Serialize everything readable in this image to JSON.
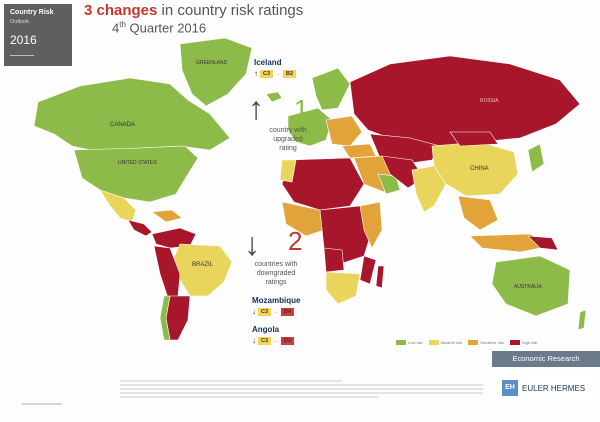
{
  "cover": {
    "title": "Country Risk",
    "subtitle": "Outlook",
    "year": "2016"
  },
  "heading": {
    "bold": "3 changes",
    "rest": " in country risk ratings",
    "quarter_prefix": "4",
    "quarter_sup": "th",
    "quarter_suffix": " Quarter 2016"
  },
  "upgrade": {
    "country": "Iceland",
    "from": "C3",
    "to": "B2",
    "count": "1",
    "caption": [
      "country with",
      "upgraded",
      "rating"
    ]
  },
  "downgrade": {
    "count": "2",
    "caption": [
      "countries with",
      "downgraded",
      "ratings"
    ],
    "items": [
      {
        "country": "Mozambique",
        "from": "C3",
        "to": "D4"
      },
      {
        "country": "Angola",
        "from": "C3",
        "to": "D3"
      }
    ]
  },
  "map_labels": {
    "greenland": "GREENLAND",
    "canada": "CANADA",
    "united_states": "UNITED STATES",
    "brazil": "BRAZIL",
    "russia": "RUSSIA",
    "china": "CHINA",
    "australia": "AUSTRALIA"
  },
  "legend": [
    "Low risk",
    "Medium risk",
    "Sensitive risk",
    "High risk"
  ],
  "colors": {
    "ocean": "#ffffff",
    "low": "#8dbb4a",
    "medium": "#e9d55c",
    "sensitive": "#e2a33a",
    "high": "#a8162b",
    "upgrade_green": "#8dbb4a",
    "downgrade_red": "#c0392b",
    "rating_yellow": "#f3d35a",
    "rating_red": "#d33a3a"
  },
  "footer": {
    "economic_research": "Economic Research",
    "euler_mark": "EH",
    "euler_name": "EULER HERMES"
  },
  "icons": {
    "up": "arrow-up-icon",
    "down": "arrow-down-icon"
  }
}
